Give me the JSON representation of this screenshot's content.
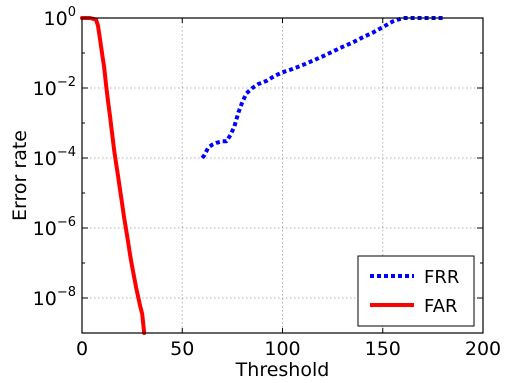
{
  "chart_data": {
    "type": "line",
    "title": "",
    "xlabel": "Threshold",
    "ylabel": "Error rate",
    "xlim": [
      0,
      200
    ],
    "ylim": [
      1e-09,
      1
    ],
    "yscale": "log",
    "grid": true,
    "legend_position": "bottom-right",
    "x_ticks": [
      0,
      50,
      100,
      150,
      200
    ],
    "x_tick_labels": [
      "0",
      "50",
      "100",
      "150",
      "200"
    ],
    "y_tick_exponents": [
      0,
      -2,
      -4,
      -6,
      -8
    ],
    "y_tick_base": "10",
    "series": [
      {
        "name": "FRR",
        "color": "#0000ff",
        "style": "dotted",
        "x": [
          60,
          61,
          63,
          65,
          67,
          70,
          72,
          74,
          76,
          78,
          80,
          82,
          85,
          88,
          92,
          96,
          100,
          105,
          110,
          115,
          120,
          125,
          130,
          135,
          140,
          145,
          150,
          155,
          160,
          165,
          170,
          175,
          180
        ],
        "y": [
          0.0001,
          0.00012,
          0.0002,
          0.00024,
          0.00027,
          0.0003,
          0.0003,
          0.00045,
          0.0008,
          0.002,
          0.004,
          0.007,
          0.01,
          0.013,
          0.016,
          0.022,
          0.028,
          0.035,
          0.045,
          0.06,
          0.08,
          0.11,
          0.15,
          0.2,
          0.28,
          0.38,
          0.55,
          0.8,
          1,
          1,
          1,
          1,
          1
        ]
      },
      {
        "name": "FAR",
        "color": "#ff0000",
        "style": "solid",
        "x": [
          0,
          4,
          7,
          8,
          9,
          10,
          11,
          12,
          13,
          14,
          15,
          16,
          17,
          18,
          19,
          20,
          21,
          22,
          23,
          24,
          25,
          26,
          27,
          28,
          29,
          30,
          31
        ],
        "y": [
          1,
          1,
          0.9,
          0.6,
          0.25,
          0.1,
          0.04,
          0.012,
          0.004,
          0.0015,
          0.0005,
          0.00017,
          7e-05,
          3e-05,
          1.2e-05,
          5e-06,
          2e-06,
          9e-07,
          4e-07,
          1.7e-07,
          8e-08,
          4e-08,
          2e-08,
          1.1e-08,
          6e-09,
          3.5e-09,
          1e-09
        ]
      }
    ]
  }
}
